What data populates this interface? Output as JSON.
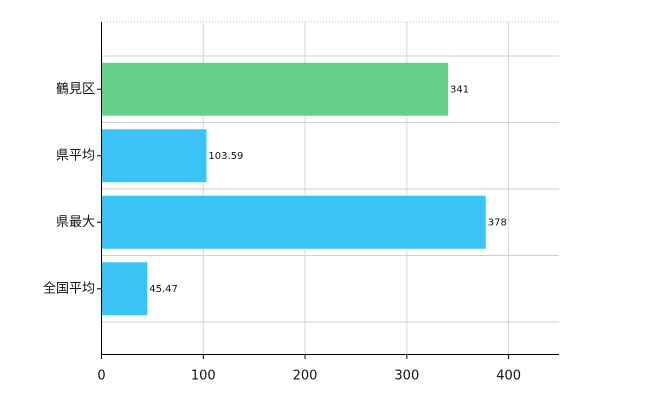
{
  "chart_data": {
    "type": "bar",
    "orientation": "horizontal",
    "categories": [
      "鶴見区",
      "県平均",
      "県最大",
      "全国平均"
    ],
    "values": [
      341,
      103.59,
      378,
      45.47
    ],
    "value_labels": [
      "341",
      "103.59",
      "378",
      "45.47"
    ],
    "bar_colors": [
      "#66D18A",
      "#3CC3F5",
      "#3CC3F5",
      "#3CC3F5"
    ],
    "xlim": [
      0,
      450
    ],
    "x_ticks": [
      0,
      100,
      200,
      300,
      400
    ],
    "x_tick_labels": [
      "0",
      "100",
      "200",
      "300",
      "400"
    ],
    "grid": "on",
    "title": "",
    "xlabel": "",
    "ylabel": ""
  }
}
